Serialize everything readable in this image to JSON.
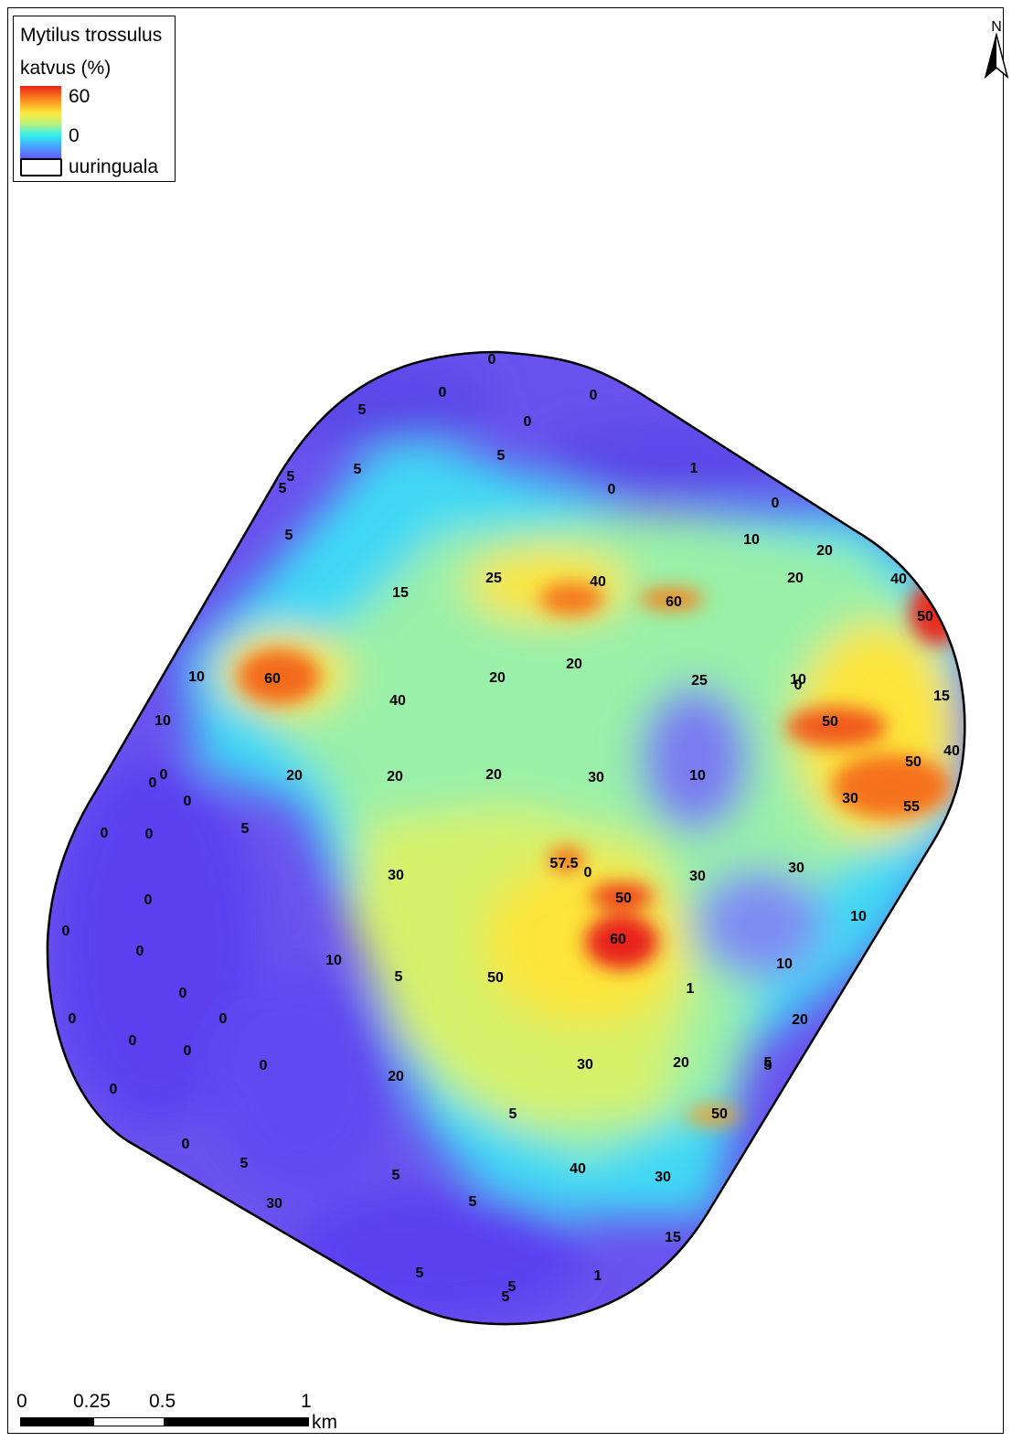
{
  "legend": {
    "title_line1": "Mytilus trossulus",
    "title_line2": "katvus (%)",
    "max_label": "60",
    "min_label": "0",
    "area_label": "uuringuala",
    "ramp_colors": [
      "#e8241a",
      "#fb8a1c",
      "#fde93c",
      "#2ff0ee",
      "#6a4af2"
    ]
  },
  "north_arrow": {
    "label": "N"
  },
  "scale_bar": {
    "labels": [
      "0",
      "0.25",
      "0.5",
      "1"
    ],
    "unit": "km"
  },
  "sample_points": [
    {
      "v": "0"
    },
    {
      "v": "0"
    },
    {
      "v": "0"
    },
    {
      "v": "0"
    },
    {
      "v": "5"
    },
    {
      "v": "5"
    },
    {
      "v": "5"
    },
    {
      "v": "1"
    },
    {
      "v": "0"
    },
    {
      "v": "0"
    },
    {
      "v": "5"
    },
    {
      "v": "5"
    },
    {
      "v": "5"
    },
    {
      "v": "10"
    },
    {
      "v": "20"
    },
    {
      "v": "20"
    },
    {
      "v": "40"
    },
    {
      "v": "25"
    },
    {
      "v": "40"
    },
    {
      "v": "60"
    },
    {
      "v": "50"
    },
    {
      "v": "15"
    },
    {
      "v": "10"
    },
    {
      "v": "60"
    },
    {
      "v": "20"
    },
    {
      "v": "20"
    },
    {
      "v": "40"
    },
    {
      "v": "25"
    },
    {
      "v": "10"
    },
    {
      "v": "0"
    },
    {
      "v": "15"
    },
    {
      "v": "10"
    },
    {
      "v": "50"
    },
    {
      "v": "50"
    },
    {
      "v": "40"
    },
    {
      "v": "0"
    },
    {
      "v": "0"
    },
    {
      "v": "20"
    },
    {
      "v": "20"
    },
    {
      "v": "20"
    },
    {
      "v": "30"
    },
    {
      "v": "10"
    },
    {
      "v": "30"
    },
    {
      "v": "55"
    },
    {
      "v": "0"
    },
    {
      "v": "0"
    },
    {
      "v": "0"
    },
    {
      "v": "5"
    },
    {
      "v": "57.5"
    },
    {
      "v": "0"
    },
    {
      "v": "30"
    },
    {
      "v": "30"
    },
    {
      "v": "30"
    },
    {
      "v": "0"
    },
    {
      "v": "50"
    },
    {
      "v": "10"
    },
    {
      "v": "0"
    },
    {
      "v": "0"
    },
    {
      "v": "10"
    },
    {
      "v": "60"
    },
    {
      "v": "10"
    },
    {
      "v": "5"
    },
    {
      "v": "50"
    },
    {
      "v": "1"
    },
    {
      "v": "0"
    },
    {
      "v": "0"
    },
    {
      "v": "0"
    },
    {
      "v": "20"
    },
    {
      "v": "0"
    },
    {
      "v": "0"
    },
    {
      "v": "0"
    },
    {
      "v": "30"
    },
    {
      "v": "20"
    },
    {
      "v": "5"
    },
    {
      "v": "5"
    },
    {
      "v": "20"
    },
    {
      "v": "0"
    },
    {
      "v": "5"
    },
    {
      "v": "50"
    },
    {
      "v": "0"
    },
    {
      "v": "5"
    },
    {
      "v": "5"
    },
    {
      "v": "40"
    },
    {
      "v": "30"
    },
    {
      "v": "30"
    },
    {
      "v": "5"
    },
    {
      "v": "15"
    },
    {
      "v": "5"
    },
    {
      "v": "5"
    },
    {
      "v": "5"
    },
    {
      "v": "1"
    }
  ]
}
